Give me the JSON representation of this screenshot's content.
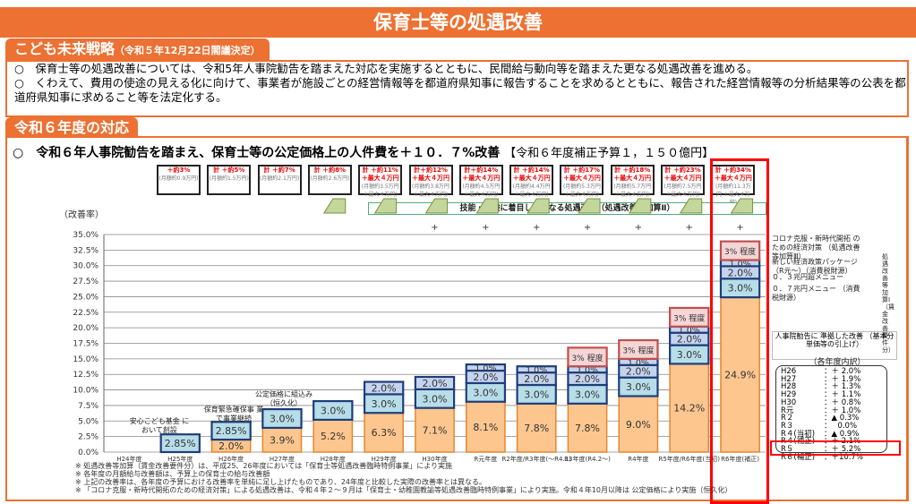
{
  "title": "保育士等の処遇改善",
  "section1": {
    "title": "こども未来戦略",
    "subtitle": "（令和５年12月22日閣議決定）",
    "bullets": [
      "○　保育士等の処遇改善については、令和5年人事院勧告を踏まえた対応を実施するとともに、民間給与動向等を踏まえた更なる処遇改善を進める。",
      "○　くわえて、費用の使途の見える化に向けて、事業者が施設ごとの経営情報等を都道府県知事に報告することを求めるとともに、報告された経営情報等の分析結果等の公表を都道府県知事に求めること等を法定化する。"
    ]
  },
  "section2": {
    "title": "令和６年度の対応",
    "headline": "○　令和６年人事院勧告を踏まえ、保育士等の公定価格上の人件費を＋１０．７%改善",
    "headline_note": "【令和６年度補正予算１，１５０億円】"
  },
  "cumulative_boxes": [
    {
      "main": "＋約3%",
      "sub": "(月額約0.9万円)"
    },
    {
      "main": "計 ＋約5%",
      "sub": "(月額約1.5万円)"
    },
    {
      "main": "計 ＋約7%",
      "sub": "(月額約2.1万円)"
    },
    {
      "main": "計 ＋約8%",
      "sub": "(月額約2.6万円)"
    },
    {
      "main": "計 ＋約11% ＋最大４万円",
      "sub": "(月額約3.5万円 ＋最大４万円)"
    },
    {
      "main": "計＋約12% ＋最大４万円",
      "sub": "(月額約3.8万円 ＋最大４万円)"
    },
    {
      "main": "計＋約14% ＋最大４万円",
      "sub": "(月額約4.5万円 ＋最大４万円)"
    },
    {
      "main": "計 ＋約14% ＋最大４万円",
      "sub": "(月額約4.4万円 ＋最大４万円)"
    },
    {
      "main": "計 ＋約17% ＋最大４万円",
      "sub": "(月額約5.3万円 ＋最大４万円)"
    },
    {
      "main": "計 ＋約18% ＋最大４万円",
      "sub": "(月額約5.7万円 ＋最大４万円)"
    },
    {
      "main": "計 ＋約23% ＋最大４万円",
      "sub": "(月額約7.5万円 ＋最大４万円)"
    },
    {
      "main": "計 ＋約34% ＋最大４万円",
      "sub": "(月額約11.3万円 ＋最大４万円)"
    }
  ],
  "skill_band_label": "技能・経験に着目した更なる処遇改善（処遇改善等加算Ⅱ）",
  "annotations": {
    "h25": "安心こども基金 において創設",
    "h26": "保育緊急確保事 業で事業継続",
    "h27": "公定価格に組込み （恒久化）",
    "corona": "コロナ克服・新時代開拓 のための経済対策 （処遇改善等加算Ⅲ）",
    "new_pkg": "新しい経済政策パッケージ （R元～）（消費税財源）",
    "03": "０．３兆円超メニュー",
    "07": "０．７兆円メニュー （消費税財源）",
    "kasan1": "処遇改善等加算Ⅰ（賃金改善要件分）",
    "jinji": "人事院勧告に 準拠した改善 （基本分単価等の引上げ）",
    "breakdown_title": "（各年度内訳）"
  },
  "breakdown": [
    {
      "year": "H26",
      "value": "：＋ 2.0%"
    },
    {
      "year": "H27",
      "value": "：＋ 1.9%"
    },
    {
      "year": "H28",
      "value": "：＋ 1.3%"
    },
    {
      "year": "H29",
      "value": "：＋ 1.1%"
    },
    {
      "year": "H30",
      "value": "：＋ 0.8%"
    },
    {
      "year": "R元",
      "value": "：＋ 1.0%"
    },
    {
      "year": "R２",
      "value": "：▲ 0.3%"
    },
    {
      "year": "R３",
      "value": "：　 0.0%"
    },
    {
      "year": "R４(当初)",
      "value": "：▲ 0.9%"
    },
    {
      "year": "R４(補正)",
      "value": "：＋ 2.1%"
    },
    {
      "year": "R５",
      "value": "：＋ 5.2%"
    },
    {
      "year": "R６(補正)",
      "value": "：＋10.7%"
    }
  ],
  "footnotes": [
    "※ 処遇改善等加算（賃金改善要件分）は、平成25、26年度においては「保育士等処遇改善臨時特例事業」により実施",
    "※ 各年度の月額給与改善額は、予算上の保育士の給与改善額",
    "※ 上記の改善率は、各年度の予算における改善率を単純に足し上げたものであり、24年度と比較した実際の改善率とは異なる。",
    "※ 「コロナ克服・新時代開拓のための経済対策」による処遇改善は、令和４年２～９月は「保育士・幼稚園教諭等処遇改善臨時特例事業」により実施。令和４年10月以降は 公定価格により実施（恒久化）"
  ],
  "chart_data": {
    "type": "bar",
    "stacked": true,
    "ylabel": "（改善率）",
    "ylim": [
      0,
      35
    ],
    "yticks": [
      "0.0%",
      "2.5%",
      "5.0%",
      "7.5%",
      "10.0%",
      "12.5%",
      "15.0%",
      "17.5%",
      "20.0%",
      "22.5%",
      "25.0%",
      "27.5%",
      "30.0%",
      "32.5%",
      "35.0%"
    ],
    "categories": [
      "H24年度",
      "H25年度",
      "H26年度",
      "H27年度",
      "H28年度",
      "H29年度",
      "H30年度",
      "R元年度",
      "R2年度/R3年度(～R4.1)",
      "R3年度(R4.2～)",
      "R4年度",
      "R5年度/R6年度(当初)",
      "R6年度(補正)"
    ],
    "series": [
      {
        "name": "人事院勧告に準拠した改善",
        "color": "#fdc68f",
        "values": [
          0,
          0,
          2.0,
          3.9,
          5.2,
          6.3,
          7.1,
          8.1,
          7.8,
          7.8,
          9.0,
          14.2,
          24.9
        ]
      },
      {
        "name": "0.7兆円メニュー / 処遇改善等加算Ⅰ",
        "color": "#b7dde8",
        "values": [
          0,
          2.85,
          2.85,
          3.0,
          3.0,
          3.0,
          3.0,
          3.0,
          3.0,
          3.0,
          3.0,
          3.0,
          3.0
        ]
      },
      {
        "name": "0.3兆円超メニュー",
        "color": "#c5d4ee",
        "values": [
          0,
          0,
          0,
          0,
          0,
          2.0,
          2.0,
          2.0,
          2.0,
          2.0,
          2.0,
          2.0,
          2.0
        ]
      },
      {
        "name": "新しい経済政策パッケージ",
        "color": "#c5d4ee",
        "values": [
          0,
          0,
          0,
          0,
          0,
          0,
          0,
          1.0,
          1.0,
          1.0,
          1.0,
          1.0,
          1.0
        ]
      },
      {
        "name": "コロナ克服・新時代開拓のための経済対策（3%程度）",
        "color": "#f5d5d5",
        "values": [
          0,
          0,
          0,
          0,
          0,
          0,
          0,
          0,
          0,
          3,
          3,
          3,
          3
        ]
      }
    ],
    "segment_labels": [
      [
        "",
        "",
        "2.0%",
        "3.9%",
        "5.2%",
        "6.3%",
        "7.1%",
        "8.1%",
        "7.8%",
        "7.8%",
        "9.0%",
        "14.2%",
        "24.9%"
      ],
      [
        "",
        "2.85%",
        "2.85%",
        "3.0%",
        "3.0%",
        "3.0%",
        "3.0%",
        "3.0%",
        "3.0%",
        "3.0%",
        "3.0%",
        "3.0%",
        "3.0%"
      ],
      [
        "",
        "",
        "",
        "",
        "",
        "2.0%",
        "2.0%",
        "2.0%",
        "2.0%",
        "2.0%",
        "2.0%",
        "2.0%",
        "2.0%"
      ],
      [
        "",
        "",
        "",
        "",
        "",
        "",
        "",
        "1.0%",
        "1.0%",
        "1.0%",
        "1.0%",
        "1.0%",
        "1.0%"
      ],
      [
        "",
        "",
        "",
        "",
        "",
        "",
        "",
        "",
        "",
        "3% 程度",
        "3% 程度",
        "3% 程度",
        "3% 程度"
      ]
    ],
    "grid": true
  }
}
